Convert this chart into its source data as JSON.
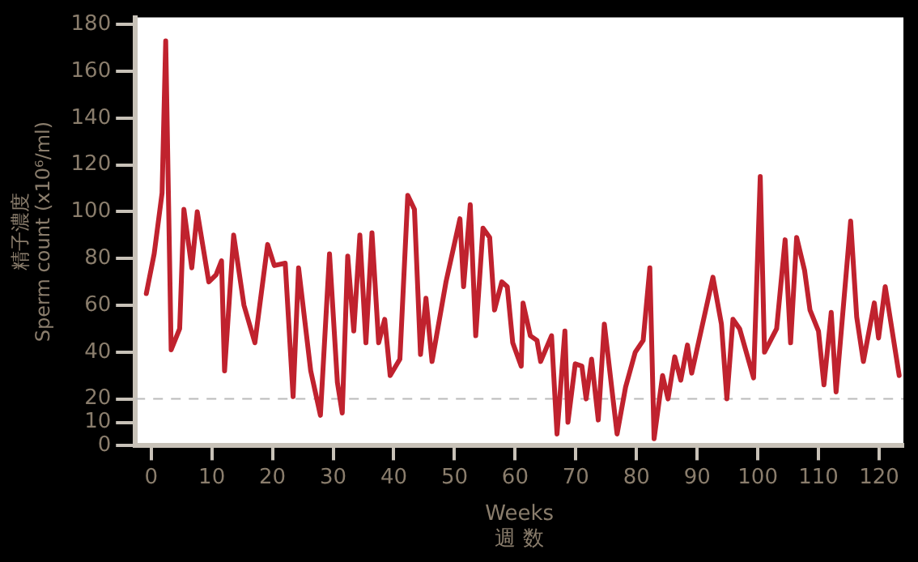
{
  "chart_data": {
    "type": "line",
    "xlabel": "Weeks\n週 数",
    "ylabel": "精子濃度\nSperm count (x10⁶/ml)",
    "xlim": [
      -2.6,
      124
    ],
    "ylim": [
      0,
      183
    ],
    "xticks": [
      0,
      10,
      20,
      30,
      40,
      50,
      60,
      70,
      80,
      90,
      100,
      110,
      120
    ],
    "yticks": [
      0,
      10,
      20,
      40,
      60,
      80,
      100,
      120,
      140,
      160,
      180
    ],
    "grid": false,
    "legend": false,
    "marker": "none",
    "line_style": "solid",
    "ref_lines": [
      {
        "axis": "y",
        "value": 20,
        "label": null,
        "color": "#bbbbbb",
        "line_style": "dashed"
      }
    ],
    "series": [
      {
        "color": "#c0222e",
        "x": [
          -0.8,
          0.5,
          1.8,
          2.4,
          3.3,
          4.7,
          5.4,
          6.7,
          7.6,
          9.5,
          10.7,
          11.6,
          12.1,
          13.6,
          15.3,
          17.1,
          19.2,
          20.3,
          22.1,
          23.4,
          24.3,
          26.3,
          27.9,
          29.4,
          30.7,
          31.5,
          32.4,
          33.4,
          34.4,
          35.4,
          36.4,
          37.5,
          38.5,
          39.4,
          41,
          42.3,
          43.4,
          44.4,
          45.3,
          46.3,
          48.6,
          50.9,
          51.5,
          52.6,
          53.5,
          54.7,
          55.8,
          56.6,
          57.8,
          58.7,
          59.6,
          61,
          61.3,
          62.5,
          63.6,
          64.2,
          66,
          66.9,
          68.2,
          68.7,
          69.9,
          71,
          71.7,
          72.6,
          73.7,
          74.7,
          76.8,
          78.2,
          79.8,
          81.1,
          82.2,
          82.9,
          84.3,
          85.2,
          86.3,
          87.3,
          88.4,
          89.1,
          92.6,
          94,
          94.9,
          95.9,
          97,
          99.3,
          100.4,
          101.1,
          103.1,
          104.5,
          105.4,
          106.4,
          107.7,
          108.6,
          110,
          110.9,
          112.1,
          112.9,
          115.3,
          116.3,
          117.4,
          119.2,
          119.9,
          121,
          123.3
        ],
        "values": [
          65,
          82,
          108,
          173,
          41,
          50,
          101,
          76,
          100,
          70,
          73,
          79,
          32,
          90,
          60,
          44,
          86,
          77,
          78,
          21,
          76,
          32,
          13,
          82,
          27,
          14,
          81,
          49,
          90,
          44,
          91,
          44,
          54,
          30,
          37,
          107,
          101,
          39,
          63,
          36,
          70,
          97,
          68,
          103,
          47,
          93,
          89,
          58,
          70,
          68,
          44,
          34,
          61,
          47,
          45,
          36,
          47,
          5,
          49,
          10,
          35,
          34,
          20,
          37,
          11,
          52,
          5,
          25,
          40,
          45,
          76,
          3,
          30,
          20,
          38,
          28,
          43,
          31,
          72,
          52,
          20,
          54,
          50,
          29,
          115,
          40,
          50,
          88,
          44,
          89,
          75,
          58,
          49,
          26,
          57,
          23,
          96,
          55,
          36,
          61,
          46,
          68,
          30
        ]
      }
    ]
  }
}
